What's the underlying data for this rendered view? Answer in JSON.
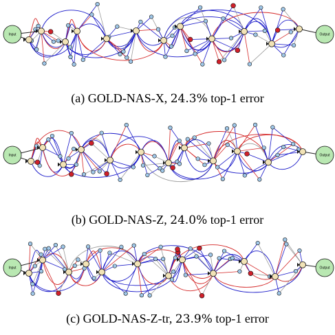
{
  "colors": {
    "io_node": "#b9e8b2",
    "cell_node": "#f2e3b6",
    "small_node": "#9fc7e8",
    "red_node": "#d0202a",
    "blue_edge": "#1616c8",
    "red_edge": "#d42525",
    "gray_edge": "#9a9a9a",
    "dark_edge": "#222222"
  },
  "io_labels": {
    "input": "Input",
    "output": "Output"
  },
  "panels": [
    {
      "caption_prefix": "(a) GOLD-NAS-X, ",
      "caption_value": "24.3%",
      "caption_suffix": " top-1 error"
    },
    {
      "caption_prefix": "(b) GOLD-NAS-Z, ",
      "caption_value": "24.0%",
      "caption_suffix": " top-1 error"
    },
    {
      "caption_prefix": "(c) GOLD-NAS-Z-tr, ",
      "caption_value": "23.9%",
      "caption_suffix": " top-1 error"
    }
  ]
}
